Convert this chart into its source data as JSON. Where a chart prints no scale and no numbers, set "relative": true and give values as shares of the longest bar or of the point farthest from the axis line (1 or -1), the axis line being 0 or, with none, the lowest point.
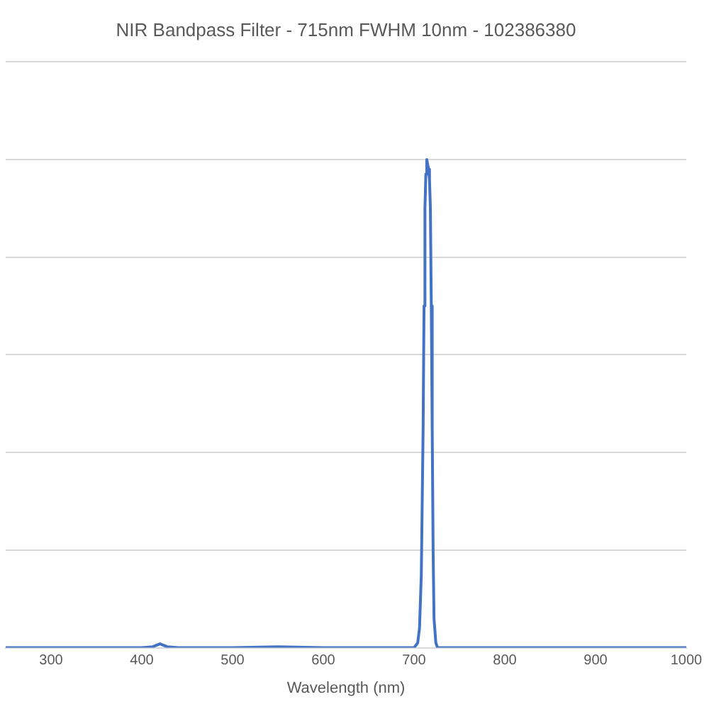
{
  "chart_data": {
    "type": "line",
    "title": "NIR Bandpass Filter - 715nm FWHM 10nm - 102386380",
    "xlabel": "Wavelength (nm)",
    "relative": true,
    "grid": "y",
    "legend": false,
    "marker": "none",
    "line_style": "solid",
    "xlim": [
      250,
      1000
    ],
    "xticks": [
      300,
      400,
      500,
      600,
      700,
      800,
      900,
      1000
    ],
    "series": [
      {
        "color": "#4472c4",
        "x": [
          250,
          300,
          350,
          400,
          412,
          420,
          428,
          440,
          500,
          550,
          600,
          650,
          690,
          700,
          704,
          706,
          708,
          710,
          711,
          712,
          713,
          714,
          715,
          716,
          717,
          718,
          719,
          720,
          721,
          722,
          724,
          726,
          730,
          750,
          800,
          850,
          900,
          950,
          1000
        ],
        "values": [
          0,
          0,
          0,
          0,
          0.002,
          0.008,
          0.002,
          0,
          0,
          0.002,
          0,
          0,
          0,
          0,
          0.01,
          0.04,
          0.15,
          0.45,
          0.7,
          0.9,
          0.97,
          1,
          0.99,
          0.98,
          0.96,
          0.9,
          0.7,
          0.45,
          0.2,
          0.06,
          0.01,
          0,
          0,
          0,
          0,
          0,
          0,
          0,
          0
        ]
      }
    ]
  }
}
